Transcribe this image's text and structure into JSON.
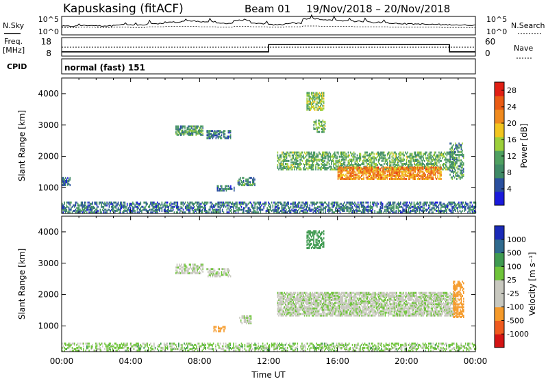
{
  "header": {
    "station": "Kapuskasing (fitACF)",
    "beam": "Beam 01",
    "date_range": "19/Nov/2018 – 20/Nov/2018"
  },
  "panels": {
    "nsky_label": "N.Sky",
    "nsky_ticks": [
      "10^5",
      "10^0"
    ],
    "nsearch_label": "N.Search",
    "nsearch_ticks": [
      "10^5",
      "10^0"
    ],
    "freq_label": "Freq.",
    "freq_unit": "[MHz]",
    "freq_ticks": [
      "18",
      "8"
    ],
    "nave_label": "Nave",
    "nave_ticks": [
      "60",
      "0"
    ],
    "cpid_label": "CPID",
    "cpid_value": "normal (fast) 151"
  },
  "colors": {
    "power": [
      "#1a1adc",
      "#2a4f9e",
      "#3f8a66",
      "#4fa060",
      "#9ccf3a",
      "#f2c51f",
      "#f08a1e",
      "#ea5b14",
      "#e11f14"
    ],
    "velocity": [
      "#d41414",
      "#ef5a1e",
      "#f59a2a",
      "#c8c8bf",
      "#c8c8bf",
      "#6fc43a",
      "#3f9a50",
      "#2f6a8e",
      "#1a2ab8"
    ],
    "ground": "#808080"
  },
  "chart_data": [
    {
      "type": "line",
      "name": "sky-noise-summary",
      "series": [
        {
          "name": "N.Sky",
          "values": [
            2.2,
            2.4,
            2.3,
            2.6,
            2.5,
            2.8,
            3.3,
            3.6,
            3.4,
            3.0,
            3.8,
            2.9,
            2.6,
            3.0,
            4.2,
            3.9,
            3.7,
            3.5,
            3.2,
            2.9,
            2.8,
            2.7,
            2.6,
            2.5
          ]
        },
        {
          "name": "N.Search",
          "values": [
            2.0,
            2.1,
            2.0,
            2.1,
            2.0,
            2.2,
            2.3,
            2.3,
            2.2,
            2.1,
            2.3,
            2.2,
            2.1,
            2.2,
            2.4,
            2.3,
            2.3,
            2.2,
            2.2,
            2.1,
            2.1,
            2.1,
            2.0,
            2.0
          ]
        }
      ],
      "x_hours": [
        0,
        1,
        2,
        3,
        4,
        5,
        6,
        7,
        8,
        9,
        10,
        11,
        12,
        13,
        14,
        15,
        16,
        17,
        18,
        19,
        20,
        21,
        22,
        23
      ],
      "ylim_log10": [
        0,
        5
      ]
    },
    {
      "type": "line",
      "name": "freq-nave",
      "series": [
        {
          "name": "Freq",
          "unit": "MHz",
          "x_hours": [
            0,
            12,
            12,
            22.5,
            22.5,
            24
          ],
          "values": [
            10.3,
            10.3,
            14.2,
            14.2,
            10.3,
            10.3
          ]
        },
        {
          "name": "Nave",
          "x_hours": [
            0,
            24
          ],
          "values": [
            29,
            29
          ]
        }
      ],
      "ylim_freq": [
        8,
        18
      ],
      "ylim_nave": [
        0,
        60
      ]
    },
    {
      "type": "heatmap",
      "title": "Power",
      "xlabel": "",
      "ylabel": "Slant Range [km]",
      "colorbar_label": "Power [dB]",
      "colorbar_ticks": [
        4,
        8,
        12,
        16,
        20,
        24,
        28
      ],
      "colorbar_range": [
        0,
        30
      ],
      "ylim": [
        180,
        4500
      ],
      "yticks": [
        1000,
        2000,
        3000,
        4000
      ],
      "xlim_hours": [
        0,
        24
      ],
      "patches": [
        {
          "t0": 0.0,
          "t1": 24.0,
          "r0": 180,
          "r1": 520,
          "val": 7,
          "density": 0.55
        },
        {
          "t0": 0.0,
          "t1": 0.5,
          "r0": 1050,
          "r1": 1300,
          "val": 7,
          "density": 0.7
        },
        {
          "t0": 6.6,
          "t1": 8.2,
          "r0": 2650,
          "r1": 2950,
          "val": 10,
          "density": 0.7
        },
        {
          "t0": 8.4,
          "t1": 9.8,
          "r0": 2550,
          "r1": 2800,
          "val": 8,
          "density": 0.55
        },
        {
          "t0": 9.0,
          "t1": 10.0,
          "r0": 880,
          "r1": 1020,
          "val": 7,
          "density": 0.6
        },
        {
          "t0": 10.2,
          "t1": 11.2,
          "r0": 1050,
          "r1": 1300,
          "val": 9,
          "density": 0.65
        },
        {
          "t0": 12.5,
          "t1": 22.8,
          "r0": 1550,
          "r1": 2100,
          "val": 12,
          "density": 0.55
        },
        {
          "t0": 16.0,
          "t1": 22.0,
          "r0": 1250,
          "r1": 1650,
          "val": 22,
          "density": 0.75
        },
        {
          "t0": 14.2,
          "t1": 15.2,
          "r0": 3450,
          "r1": 4000,
          "val": 14,
          "density": 0.6
        },
        {
          "t0": 14.6,
          "t1": 15.3,
          "r0": 2750,
          "r1": 3150,
          "val": 12,
          "density": 0.45
        },
        {
          "t0": 22.5,
          "t1": 23.3,
          "r0": 1250,
          "r1": 2400,
          "val": 10,
          "density": 0.5
        }
      ]
    },
    {
      "type": "heatmap",
      "title": "Velocity",
      "xlabel": "Time UT",
      "ylabel": "Slant Range [km]",
      "colorbar_label": "Velocity [m s⁻¹]",
      "colorbar_ticks": [
        -1000,
        -500,
        -100,
        -25,
        25,
        100,
        500,
        1000
      ],
      "ylim": [
        180,
        4500
      ],
      "yticks": [
        1000,
        2000,
        3000,
        4000
      ],
      "xlim_hours": [
        0,
        24
      ],
      "xticks": [
        "00:00",
        "04:00",
        "08:00",
        "12:00",
        "16:00",
        "20:00",
        "00:00"
      ],
      "patches": [
        {
          "t0": 0.0,
          "t1": 24.0,
          "r0": 180,
          "r1": 450,
          "val": 50,
          "density": 0.45
        },
        {
          "t0": 6.6,
          "t1": 8.2,
          "r0": 2650,
          "r1": 2950,
          "val": 0,
          "density": 0.6
        },
        {
          "t0": 8.4,
          "t1": 9.8,
          "r0": 2550,
          "r1": 2800,
          "val": 0,
          "density": 0.5
        },
        {
          "t0": 12.5,
          "t1": 22.8,
          "r0": 1300,
          "r1": 2050,
          "val": 0,
          "density": 0.75
        },
        {
          "t0": 14.2,
          "t1": 15.2,
          "r0": 3450,
          "r1": 4000,
          "val": 300,
          "density": 0.55
        },
        {
          "t0": 22.7,
          "t1": 23.3,
          "r0": 1250,
          "r1": 2400,
          "val": -200,
          "density": 0.55
        },
        {
          "t0": 8.8,
          "t1": 9.5,
          "r0": 800,
          "r1": 950,
          "val": -200,
          "density": 0.5
        },
        {
          "t0": 10.3,
          "t1": 11.0,
          "r0": 1050,
          "r1": 1300,
          "val": 0,
          "density": 0.55
        }
      ]
    }
  ]
}
